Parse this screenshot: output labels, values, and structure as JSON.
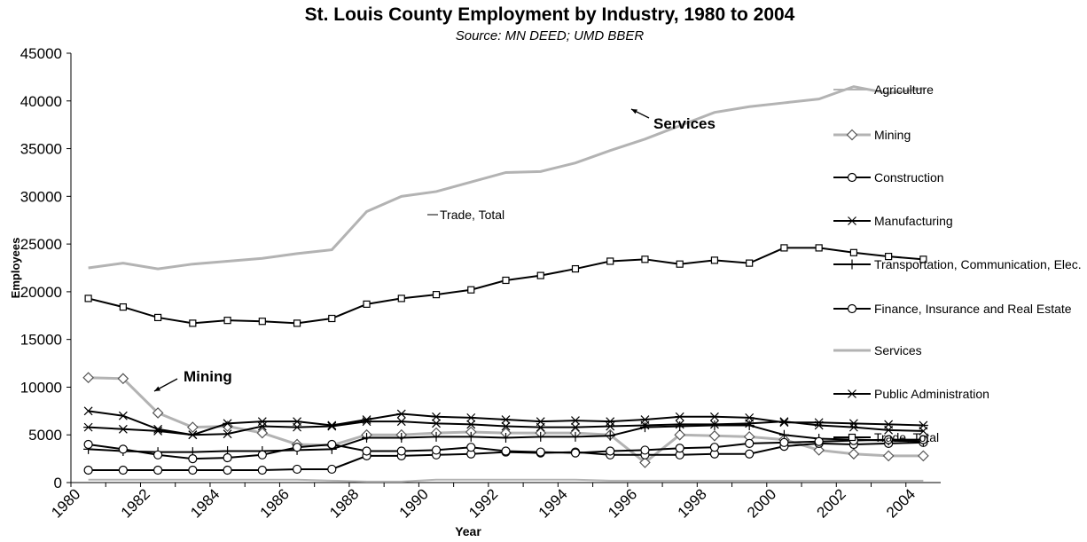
{
  "chart_data": {
    "type": "line",
    "title": "St. Louis County Employment by Industry, 1980 to 2004",
    "subtitle": "Source: MN DEED; UMD BBER",
    "y_label": "Employees",
    "x_label": "Year",
    "categories": [
      "1980",
      null,
      "1982",
      null,
      "1984",
      null,
      "1986",
      null,
      "1988",
      null,
      "1990",
      null,
      "1992",
      null,
      "1994",
      null,
      "1996",
      null,
      "1998",
      null,
      "2000",
      null,
      "2002",
      null,
      "2004"
    ],
    "ylim": [
      0,
      45000
    ],
    "yticks": [
      0,
      5000,
      10000,
      15000,
      20000,
      25000,
      30000,
      35000,
      40000,
      45000
    ],
    "legend": "right",
    "annotations": [
      "Services",
      "Mining",
      "Trade, Total"
    ],
    "series": [
      {
        "name": "Agriculture",
        "color": "#b3b3b3",
        "marker": "none",
        "width": 2,
        "values": [
          300,
          300,
          300,
          300,
          300,
          300,
          300,
          200,
          100,
          100,
          300,
          300,
          300,
          300,
          300,
          200,
          200,
          200,
          200,
          200,
          200,
          200,
          200,
          200,
          200
        ]
      },
      {
        "name": "Mining",
        "color": "#b3b3b3",
        "marker": "diamond",
        "width": 3,
        "values": [
          11000,
          10900,
          7300,
          5800,
          5900,
          5200,
          4000,
          3900,
          5000,
          5000,
          5200,
          5300,
          5200,
          5200,
          5200,
          5000,
          2100,
          5000,
          4900,
          4800,
          4500,
          3400,
          3000,
          2800,
          2800
        ]
      },
      {
        "name": "Construction",
        "color": "#000000",
        "marker": "circle",
        "width": 2,
        "values": [
          1300,
          1300,
          1300,
          1300,
          1300,
          1300,
          1400,
          1400,
          2800,
          2800,
          2900,
          3000,
          3200,
          3100,
          3200,
          2900,
          2900,
          2900,
          3000,
          3000,
          3800,
          4100,
          4000,
          4100,
          4200
        ]
      },
      {
        "name": "Manufacturing",
        "color": "#000000",
        "marker": "x",
        "width": 2,
        "values": [
          7500,
          7000,
          5600,
          5000,
          5100,
          5900,
          5800,
          5900,
          6400,
          6400,
          6200,
          6100,
          5900,
          5800,
          5800,
          5900,
          6000,
          6100,
          6100,
          6200,
          6400,
          6000,
          5800,
          5500,
          5400
        ]
      },
      {
        "name": "Transportation, Communication, Elec.",
        "color": "#000000",
        "marker": "plus",
        "width": 2,
        "values": [
          3500,
          3300,
          3200,
          3200,
          3300,
          3300,
          3400,
          3500,
          4700,
          4700,
          4800,
          4800,
          4700,
          4800,
          4800,
          4900,
          5800,
          5900,
          6000,
          6000,
          5000,
          4600,
          4500,
          4400,
          4300
        ]
      },
      {
        "name": "Finance, Insurance and Real Estate",
        "color": "#000000",
        "marker": "circle",
        "width": 2,
        "values": [
          4000,
          3500,
          2900,
          2500,
          2600,
          2900,
          3700,
          4000,
          3300,
          3300,
          3400,
          3700,
          3300,
          3200,
          3100,
          3300,
          3400,
          3600,
          3700,
          4100,
          4200,
          4300,
          4400,
          4500,
          4500
        ]
      },
      {
        "name": "Services",
        "color": "#b3b3b3",
        "marker": "none",
        "width": 3,
        "values": [
          22500,
          23000,
          22400,
          22900,
          23200,
          23500,
          24000,
          24400,
          28400,
          30000,
          30500,
          31500,
          32500,
          32600,
          33500,
          34800,
          36000,
          37400,
          38800,
          39400,
          39800,
          40200,
          41500,
          40800,
          41300
        ]
      },
      {
        "name": "Public Administration",
        "color": "#000000",
        "marker": "asterisk",
        "width": 2,
        "values": [
          5800,
          5600,
          5400,
          5000,
          6200,
          6400,
          6400,
          6000,
          6600,
          7200,
          6900,
          6800,
          6600,
          6400,
          6500,
          6400,
          6600,
          6900,
          6900,
          6800,
          6300,
          6300,
          6200,
          6100,
          6000
        ]
      },
      {
        "name": "Trade, Total",
        "color": "#000000",
        "marker": "square",
        "width": 2,
        "values": [
          19300,
          18400,
          17300,
          16700,
          17000,
          16900,
          16700,
          17200,
          18700,
          19300,
          19700,
          20200,
          21200,
          21700,
          22400,
          23200,
          23400,
          22900,
          23300,
          23000,
          24600,
          24600,
          24100,
          23700,
          23400
        ]
      }
    ]
  }
}
